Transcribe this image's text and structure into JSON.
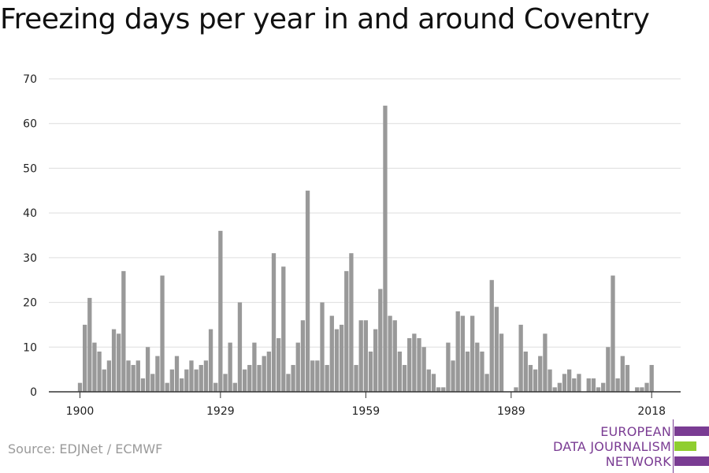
{
  "title": "Freezing days per year in and around Coventry",
  "source": "Source: EDJNet / ECMWF",
  "logo": {
    "line1": "EUROPEAN",
    "line2": "DATA JOURNALISM",
    "line3": "NETWORK",
    "colors": {
      "purple": "#7a3c93",
      "green": "#8fce2f"
    }
  },
  "chart_data": {
    "type": "bar",
    "title": "Freezing days per year in and around Coventry",
    "xlabel": "",
    "ylabel": "",
    "x_ticks": [
      1900,
      1929,
      1959,
      1989,
      2018
    ],
    "y_ticks": [
      0,
      10,
      20,
      30,
      40,
      50,
      60,
      70
    ],
    "ylim": [
      0,
      70
    ],
    "xlim": [
      1899,
      2022
    ],
    "grid": true,
    "bar_color": "#999999",
    "years": [
      1900,
      1901,
      1902,
      1903,
      1904,
      1905,
      1906,
      1907,
      1908,
      1909,
      1910,
      1911,
      1912,
      1913,
      1914,
      1915,
      1916,
      1917,
      1918,
      1919,
      1920,
      1921,
      1922,
      1923,
      1924,
      1925,
      1926,
      1927,
      1928,
      1929,
      1930,
      1931,
      1932,
      1933,
      1934,
      1935,
      1936,
      1937,
      1938,
      1939,
      1940,
      1941,
      1942,
      1943,
      1944,
      1945,
      1946,
      1947,
      1948,
      1949,
      1950,
      1951,
      1952,
      1953,
      1954,
      1955,
      1956,
      1957,
      1958,
      1959,
      1960,
      1961,
      1962,
      1963,
      1964,
      1965,
      1966,
      1967,
      1968,
      1969,
      1970,
      1971,
      1972,
      1973,
      1974,
      1975,
      1976,
      1977,
      1978,
      1979,
      1980,
      1981,
      1982,
      1983,
      1984,
      1985,
      1986,
      1987,
      1988,
      1989,
      1990,
      1991,
      1992,
      1993,
      1994,
      1995,
      1996,
      1997,
      1998,
      1999,
      2000,
      2001,
      2002,
      2003,
      2004,
      2005,
      2006,
      2007,
      2008,
      2009,
      2010,
      2011,
      2012,
      2013,
      2014,
      2015,
      2016,
      2017,
      2018
    ],
    "values": [
      2,
      15,
      21,
      11,
      9,
      5,
      7,
      14,
      13,
      27,
      7,
      6,
      7,
      3,
      10,
      4,
      8,
      26,
      2,
      5,
      8,
      3,
      5,
      7,
      5,
      6,
      7,
      14,
      2,
      36,
      4,
      11,
      2,
      20,
      5,
      6,
      11,
      6,
      8,
      9,
      31,
      12,
      28,
      4,
      6,
      11,
      16,
      45,
      7,
      7,
      20,
      6,
      17,
      14,
      15,
      27,
      31,
      6,
      16,
      16,
      9,
      14,
      23,
      64,
      17,
      16,
      9,
      6,
      12,
      13,
      12,
      10,
      5,
      4,
      1,
      1,
      11,
      7,
      18,
      17,
      9,
      17,
      11,
      9,
      4,
      25,
      19,
      13,
      0,
      0,
      1,
      15,
      9,
      6,
      5,
      8,
      13,
      5,
      1,
      2,
      4,
      5,
      3,
      4,
      0,
      3,
      3,
      1,
      2,
      10,
      26,
      3,
      8,
      6,
      0,
      1,
      1,
      2,
      6
    ]
  }
}
